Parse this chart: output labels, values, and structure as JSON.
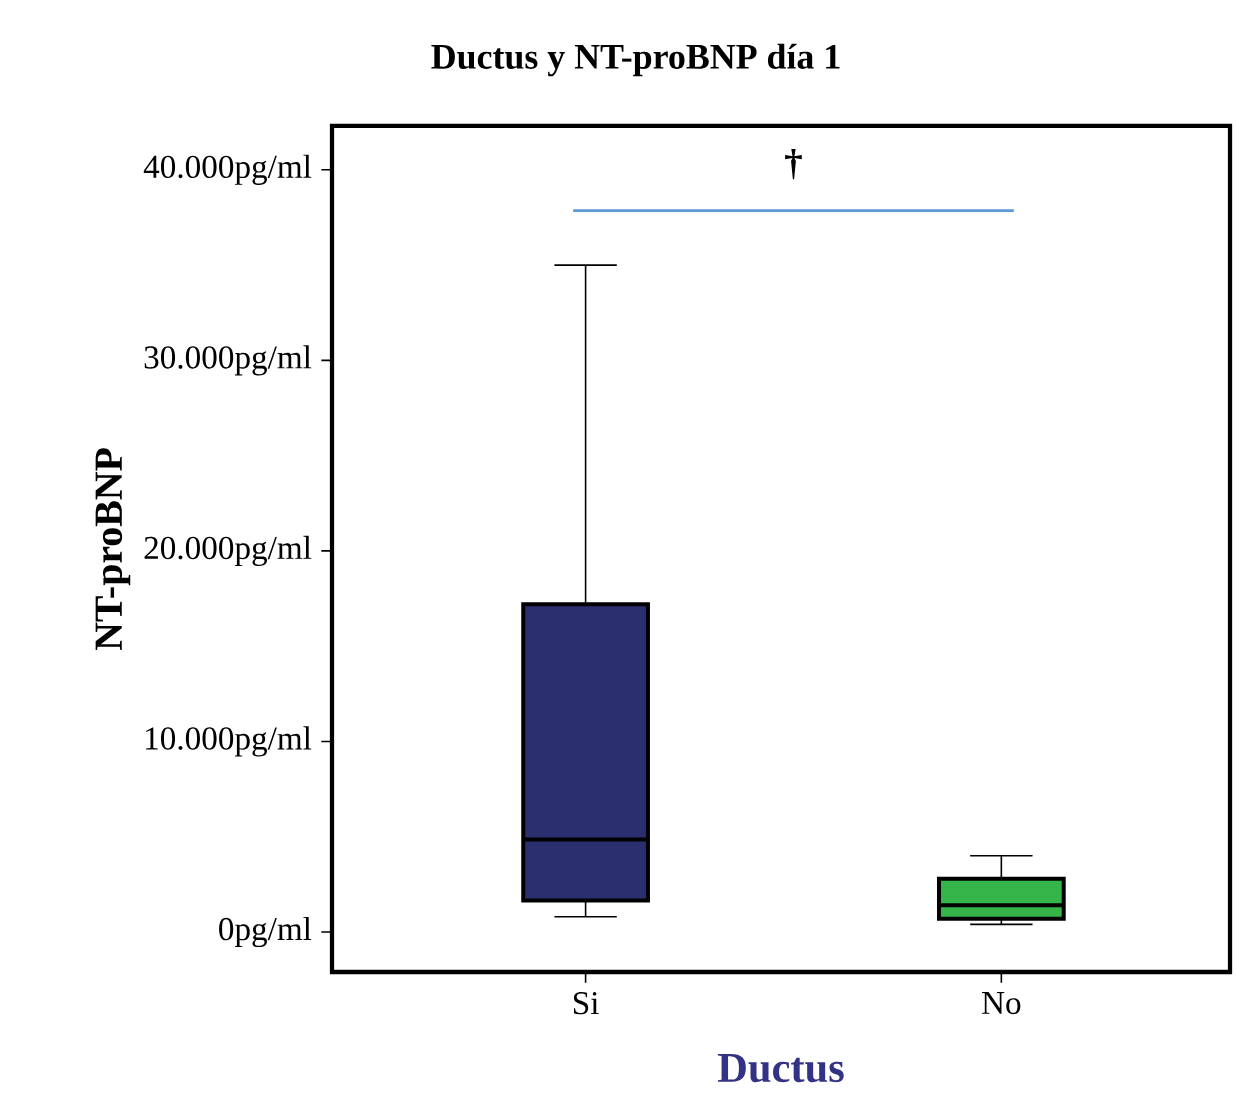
{
  "chart_data": {
    "type": "box",
    "title": "Ductus y NT-proBNP día 1",
    "xlabel": "Ductus",
    "ylabel": "NT-proBNP",
    "categories": [
      "Si",
      "No"
    ],
    "colors": [
      "#2b2f6e",
      "#35b44a"
    ],
    "boxes": [
      {
        "low": 800,
        "q1": 1650,
        "median": 4850,
        "q3": 17200,
        "high": 35000
      },
      {
        "low": 400,
        "q1": 700,
        "median": 1400,
        "q3": 2800,
        "high": 4000
      }
    ],
    "ylim": [
      -2100,
      42300
    ],
    "yticks": [
      {
        "value": 0,
        "label": "0pg/ml"
      },
      {
        "value": 10000,
        "label": "10.000pg/ml"
      },
      {
        "value": 20000,
        "label": "20.000pg/ml"
      },
      {
        "value": 30000,
        "label": "30.000pg/ml"
      },
      {
        "value": 40000,
        "label": "40.000pg/ml"
      }
    ],
    "annotations": [
      "†"
    ],
    "grid": false
  }
}
